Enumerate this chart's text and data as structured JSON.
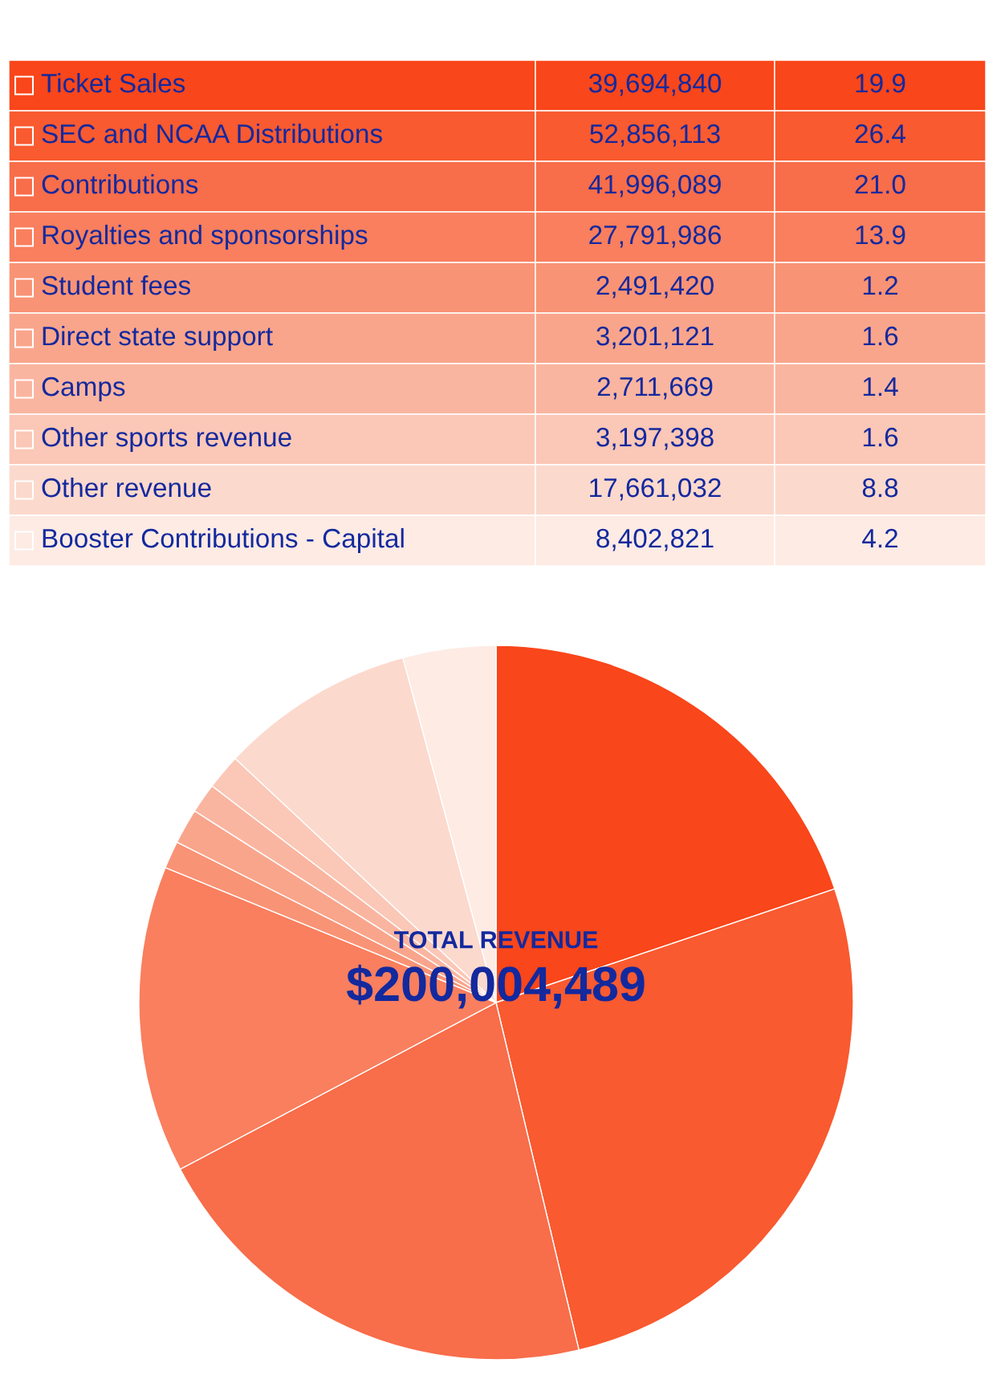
{
  "chart_data": {
    "type": "pie",
    "categories": [
      "Ticket Sales",
      "SEC and NCAA Distributions",
      "Contributions",
      "Royalties and sponsorships",
      "Student fees",
      "Direct state support",
      "Camps",
      "Other sports revenue",
      "Other revenue",
      "Booster Contributions - Capital"
    ],
    "values": [
      39694840,
      52856113,
      41996089,
      27791986,
      2491420,
      3201121,
      2711669,
      3197398,
      17661032,
      8402821
    ],
    "colors": [
      "#f9461a",
      "#f95a30",
      "#f86d4a",
      "#f97f5e",
      "#f99375",
      "#f9a58c",
      "#fab5a0",
      "#fbc7b7",
      "#fcd9cd",
      "#fdebe4"
    ],
    "legend": "top",
    "value_labels": [
      "39,694,840",
      "52,856,113",
      "41,996,089",
      "27,791,986",
      "2,491,420",
      "3,201,121",
      "2,711,669",
      "3,197,398",
      "17,661,032",
      "8,402,821"
    ],
    "annotations": [
      "TOTAL REVENUE",
      "$200,004,489",
      "19.9",
      "26.4",
      "21.0",
      "13.9",
      "1.2",
      "1.6",
      "1.4",
      "1.6",
      "8.8",
      "4.2"
    ]
  }
}
